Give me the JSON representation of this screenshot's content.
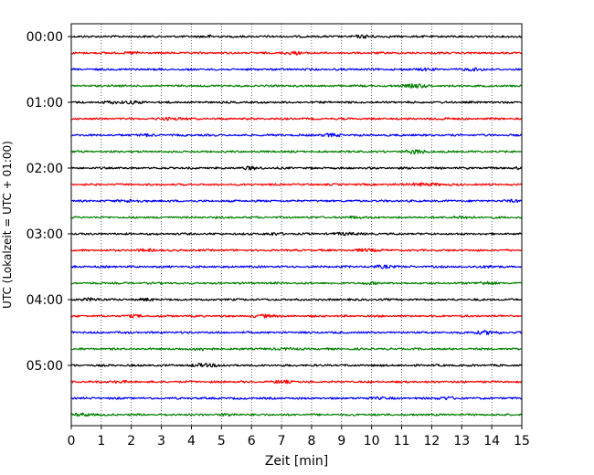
{
  "chart_data": {
    "type": "line",
    "title": "",
    "xlabel": "Zeit  [min]",
    "ylabel": "UTC (Lokalzeit = UTC + 01:00)",
    "xlim": [
      0,
      15
    ],
    "x_ticks": [
      0,
      1,
      2,
      3,
      4,
      5,
      6,
      7,
      8,
      9,
      10,
      11,
      12,
      13,
      14,
      15
    ],
    "x_grid": "dotted vertical lines at every minute",
    "y_ticks": [
      "00:00",
      "01:00",
      "02:00",
      "03:00",
      "04:00",
      "05:00"
    ],
    "minutes_per_trace": 15,
    "trace_count": 24,
    "trace_start_times": [
      "00:00",
      "00:15",
      "00:30",
      "00:45",
      "01:00",
      "01:15",
      "01:30",
      "01:45",
      "02:00",
      "02:15",
      "02:30",
      "02:45",
      "03:00",
      "03:15",
      "03:30",
      "03:45",
      "04:00",
      "04:15",
      "04:30",
      "04:45",
      "05:00",
      "05:15",
      "05:30",
      "05:45"
    ],
    "trace_color_cycle": [
      "#000000",
      "#ff0000",
      "#0000ff",
      "#007f00"
    ],
    "signal_description": "continuous seismic noise, amplitude small relative to trace spacing"
  }
}
